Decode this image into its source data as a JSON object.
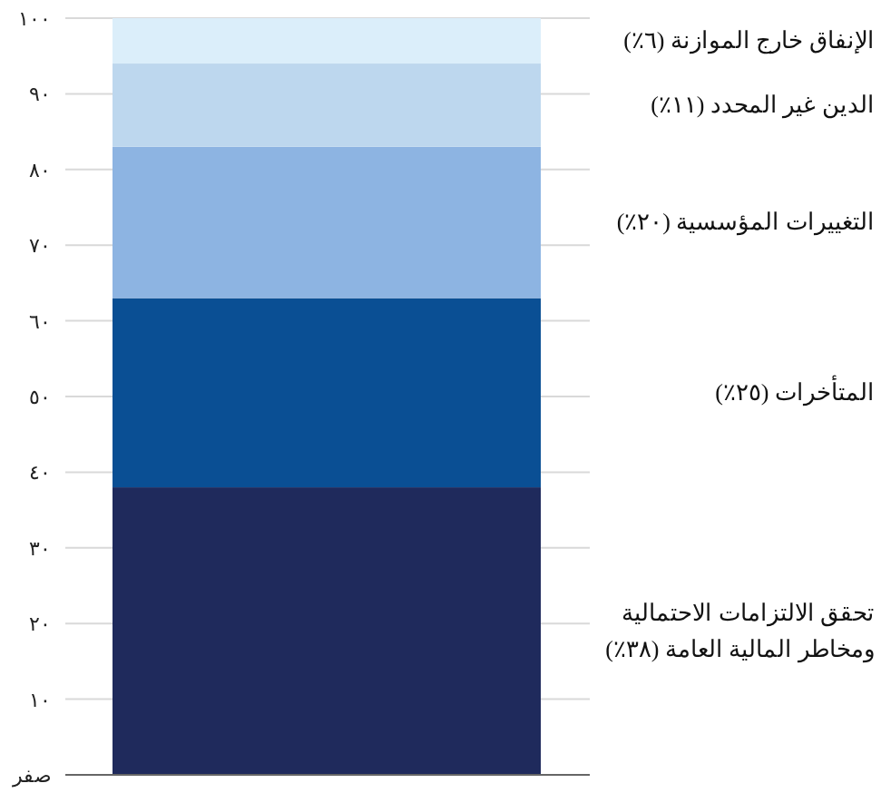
{
  "chart_data": {
    "type": "bar",
    "stacked": true,
    "categories": [
      null
    ],
    "series": [
      {
        "name": "تحقق الالتزامات الاحتمالية ومخاطر المالية العامة (٣٨٪)",
        "color": "#1f2a5c",
        "values": [
          38
        ]
      },
      {
        "name": "المتأخرات (٢٥٪)",
        "color": "#0a4f94",
        "values": [
          25
        ]
      },
      {
        "name": "التغييرات المؤسسية (٢٠٪)",
        "color": "#8db4e2",
        "values": [
          20
        ]
      },
      {
        "name": "الدين غير المحدد (١١٪)",
        "color": "#bdd7ee",
        "values": [
          11
        ]
      },
      {
        "name": "الإنفاق خارج الموازنة (٦٪)",
        "color": "#dbeefa",
        "values": [
          6
        ]
      }
    ],
    "ylim": [
      0,
      100
    ],
    "yticks": [
      {
        "value": 0,
        "label": "صفر"
      },
      {
        "value": 10,
        "label": "١٠"
      },
      {
        "value": 20,
        "label": "٢٠"
      },
      {
        "value": 30,
        "label": "٣٠"
      },
      {
        "value": 40,
        "label": "٤٠"
      },
      {
        "value": 50,
        "label": "٥٠"
      },
      {
        "value": 60,
        "label": "٦٠"
      },
      {
        "value": 70,
        "label": "٧٠"
      },
      {
        "value": 80,
        "label": "٨٠"
      },
      {
        "value": 90,
        "label": "٩٠"
      },
      {
        "value": 100,
        "label": "١٠٠"
      }
    ],
    "grid": "y"
  }
}
